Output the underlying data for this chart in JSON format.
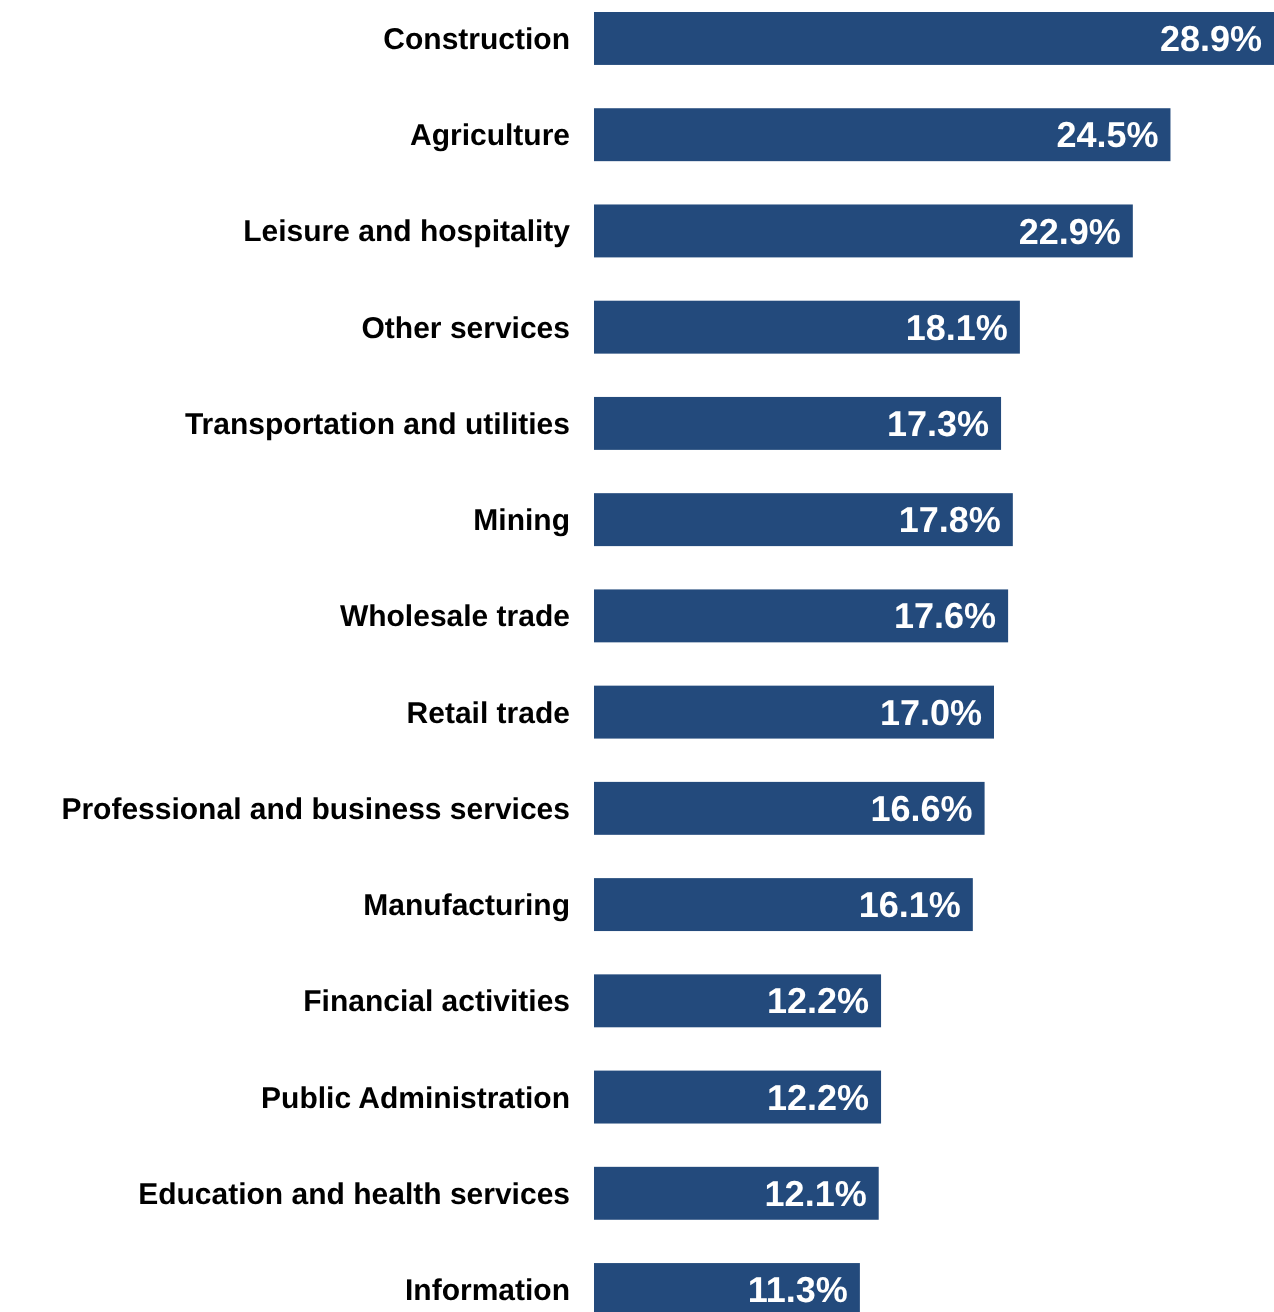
{
  "chart_data": {
    "type": "bar",
    "orientation": "horizontal",
    "categories": [
      "Construction",
      "Agriculture",
      "Leisure and hospitality",
      "Other services",
      "Transportation and utilities",
      "Mining",
      "Wholesale trade",
      "Retail trade",
      "Professional and business services",
      "Manufacturing",
      "Financial activities",
      "Public Administration",
      "Education and health services",
      "Information"
    ],
    "values": [
      28.9,
      24.5,
      22.9,
      18.1,
      17.3,
      17.8,
      17.6,
      17.0,
      16.6,
      16.1,
      12.2,
      12.2,
      12.1,
      11.3
    ],
    "value_labels": [
      "28.9%",
      "24.5%",
      "22.9%",
      "18.1%",
      "17.3%",
      "17.8%",
      "17.6%",
      "17.0%",
      "16.6%",
      "16.1%",
      "12.2%",
      "12.2%",
      "12.1%",
      "11.3%"
    ],
    "color": "#234a7c"
  }
}
